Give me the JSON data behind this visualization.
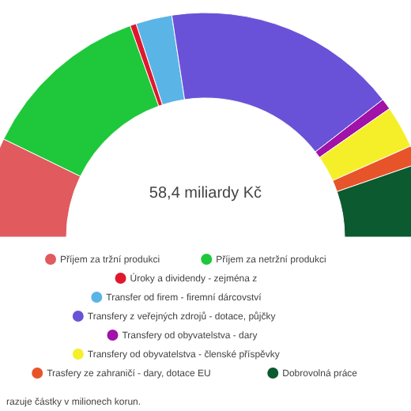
{
  "chart_data": {
    "type": "donut",
    "categories": [
      "Příjem za tržní produkci",
      "Příjem za netržní produkci",
      "Úroky a dividendy - zejména z",
      "Transfer od firem - firemní dárcovství",
      "Transfery z veřejných zdrojů - dotace, půjčky",
      "Transfery od obyvatelstva - dary",
      "Transfery od obyvatelstva - členské příspěvky",
      "Trasfery ze zahraničí - dary, dotace EU",
      "Dobrovolná práce"
    ],
    "values": [
      14.4,
      24.7,
      0.9,
      5.2,
      33.8,
      1.6,
      6.1,
      2.7,
      10.6
    ],
    "colors": [
      "#e05a5e",
      "#1ec83a",
      "#e0182e",
      "#5ab4e6",
      "#6a52d8",
      "#a012a8",
      "#f5ef2a",
      "#e8542a",
      "#0b5a30"
    ],
    "legend": "bottom",
    "annotations": [
      "58,4 miliardy Kč",
      "razuje částky v milionech korun."
    ]
  }
}
